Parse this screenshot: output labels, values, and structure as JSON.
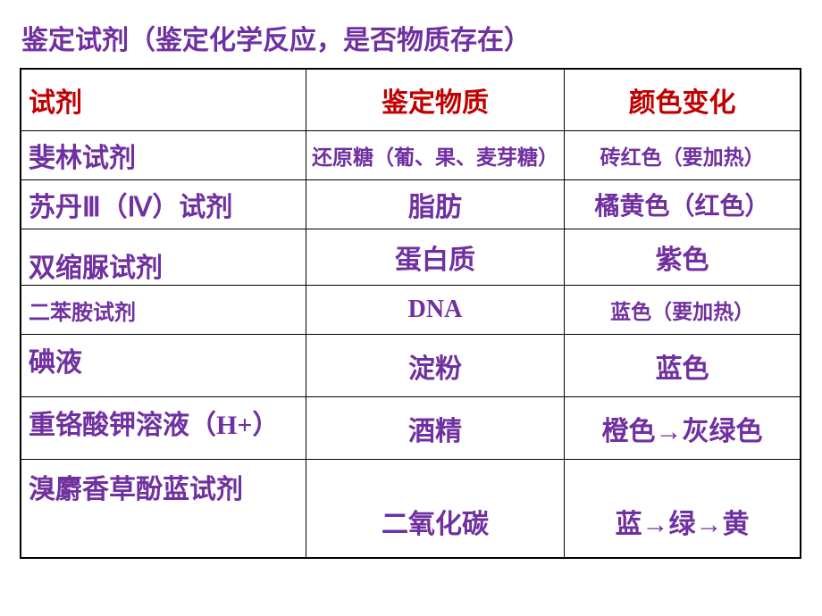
{
  "title": "鉴定试剂（鉴定化学反应，是否物质存在）",
  "headers": {
    "reagent": "试剂",
    "substance": "鉴定物质",
    "color": "颜色变化"
  },
  "rows": [
    {
      "reagent": "斐林试剂",
      "substance": "还原糖（葡、果、麦芽糖）",
      "color": "砖红色（要加热）"
    },
    {
      "reagent": "苏丹Ⅲ（Ⅳ）试剂",
      "substance": "脂肪",
      "color": "橘黄色（红色）"
    },
    {
      "reagent": "双缩脲试剂",
      "substance": "蛋白质",
      "color": "紫色"
    },
    {
      "reagent": "二苯胺试剂",
      "substance": "DNA",
      "color": "蓝色（要加热）"
    },
    {
      "reagent": "碘液",
      "substance": "淀粉",
      "color": "蓝色"
    },
    {
      "reagent": "重铬酸钾溶液（H+）",
      "substance": "酒精",
      "color": "橙色→灰绿色"
    },
    {
      "reagent": "溴麝香草酚蓝试剂",
      "substance": "二氧化碳",
      "color": "蓝→绿→黄"
    }
  ],
  "colors": {
    "title_color": "#7030a0",
    "header_color": "#c00000",
    "cell_color": "#7030a0",
    "border_color": "#000000",
    "background_color": "#ffffff"
  },
  "fontsizes": {
    "title": 30,
    "header": 30,
    "large": 30,
    "medium": 28,
    "small": 23
  }
}
